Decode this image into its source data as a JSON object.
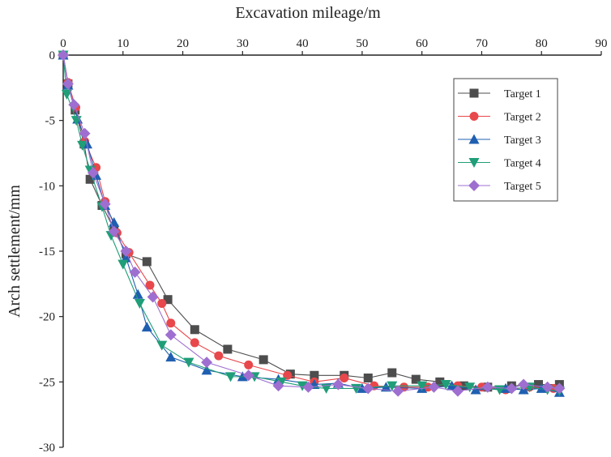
{
  "chart_data": {
    "type": "line",
    "title": "",
    "xlabel": "Excavation mileage/m",
    "ylabel": "Arch settlement/mm",
    "xlim": [
      0,
      90
    ],
    "ylim": [
      -30,
      0
    ],
    "x_ticks": [
      "0",
      "10",
      "20",
      "30",
      "40",
      "50",
      "60",
      "70",
      "80",
      "90"
    ],
    "y_ticks": [
      "0",
      "-5",
      "-10",
      "-15",
      "-20",
      "-25",
      "-30"
    ],
    "x_axis_position": "top",
    "grid": false,
    "legend_position": "top-right",
    "series": [
      {
        "name": "Target 1",
        "color": "#4d4d4d",
        "marker": "square",
        "points": [
          [
            0,
            0
          ],
          [
            0.8,
            -2.2
          ],
          [
            2,
            -4.2
          ],
          [
            3.5,
            -6.8
          ],
          [
            4.5,
            -9.5
          ],
          [
            6.5,
            -11.5
          ],
          [
            8.5,
            -13.3
          ],
          [
            10.5,
            -15.2
          ],
          [
            14,
            -15.8
          ],
          [
            17.5,
            -18.7
          ],
          [
            22,
            -21
          ],
          [
            27.5,
            -22.5
          ],
          [
            33.5,
            -23.3
          ],
          [
            38,
            -24.4
          ],
          [
            42,
            -24.5
          ],
          [
            47,
            -24.5
          ],
          [
            51,
            -24.7
          ],
          [
            55,
            -24.3
          ],
          [
            59,
            -24.8
          ],
          [
            63,
            -25
          ],
          [
            67,
            -25.3
          ],
          [
            71,
            -25.4
          ],
          [
            75,
            -25.3
          ],
          [
            79.5,
            -25.2
          ],
          [
            83,
            -25.2
          ]
        ]
      },
      {
        "name": "Target 2",
        "color": "#e8474b",
        "marker": "circle",
        "points": [
          [
            0,
            0
          ],
          [
            0.8,
            -2.1
          ],
          [
            2.1,
            -4
          ],
          [
            3.6,
            -6.6
          ],
          [
            5.5,
            -8.6
          ],
          [
            7,
            -11.2
          ],
          [
            9,
            -13.6
          ],
          [
            11,
            -15.1
          ],
          [
            14.5,
            -17.6
          ],
          [
            16.5,
            -19
          ],
          [
            18,
            -20.5
          ],
          [
            22,
            -22
          ],
          [
            26,
            -23
          ],
          [
            31,
            -23.7
          ],
          [
            37.5,
            -24.5
          ],
          [
            42,
            -25
          ],
          [
            47,
            -24.7
          ],
          [
            52,
            -25.3
          ],
          [
            57,
            -25.4
          ],
          [
            61,
            -25.4
          ],
          [
            66,
            -25.3
          ],
          [
            70,
            -25.4
          ],
          [
            74,
            -25.6
          ],
          [
            78,
            -25.4
          ],
          [
            82,
            -25.5
          ]
        ]
      },
      {
        "name": "Target 3",
        "color": "#1f5fb0",
        "marker": "triangle-up",
        "points": [
          [
            0,
            0
          ],
          [
            0.8,
            -2.3
          ],
          [
            2.4,
            -4.9
          ],
          [
            4,
            -6.8
          ],
          [
            5.5,
            -9.2
          ],
          [
            7,
            -11.5
          ],
          [
            8.5,
            -12.8
          ],
          [
            10.5,
            -15.5
          ],
          [
            12.5,
            -18.3
          ],
          [
            14,
            -20.8
          ],
          [
            18,
            -23.1
          ],
          [
            24,
            -24.1
          ],
          [
            30,
            -24.6
          ],
          [
            36,
            -24.8
          ],
          [
            42,
            -25.2
          ],
          [
            46,
            -25.1
          ],
          [
            50,
            -25.5
          ],
          [
            54,
            -25.4
          ],
          [
            60,
            -25.5
          ],
          [
            65,
            -25.3
          ],
          [
            69,
            -25.6
          ],
          [
            74,
            -25.5
          ],
          [
            77,
            -25.6
          ],
          [
            80,
            -25.5
          ],
          [
            83,
            -25.8
          ]
        ]
      },
      {
        "name": "Target 4",
        "color": "#1f9e78",
        "marker": "triangle-down",
        "points": [
          [
            0,
            0
          ],
          [
            0.6,
            -3
          ],
          [
            2.2,
            -5
          ],
          [
            3.2,
            -6.9
          ],
          [
            4.5,
            -8.8
          ],
          [
            6.5,
            -11.6
          ],
          [
            8,
            -13.8
          ],
          [
            10,
            -16
          ],
          [
            12.8,
            -19
          ],
          [
            16.5,
            -22.2
          ],
          [
            21,
            -23.5
          ],
          [
            28,
            -24.6
          ],
          [
            32,
            -24.6
          ],
          [
            36.5,
            -25
          ],
          [
            40,
            -25.3
          ],
          [
            44,
            -25.5
          ],
          [
            49,
            -25.5
          ],
          [
            55,
            -25.3
          ],
          [
            60,
            -25.3
          ],
          [
            64,
            -25.2
          ],
          [
            68,
            -25.4
          ],
          [
            73,
            -25.6
          ],
          [
            78,
            -25.4
          ],
          [
            81,
            -25.6
          ],
          [
            83,
            -25.7
          ]
        ]
      },
      {
        "name": "Target 5",
        "color": "#9e6fd0",
        "marker": "diamond",
        "points": [
          [
            0,
            0
          ],
          [
            0.8,
            -2.2
          ],
          [
            1.8,
            -3.8
          ],
          [
            3.6,
            -6
          ],
          [
            5,
            -9
          ],
          [
            7,
            -11.4
          ],
          [
            8.5,
            -13.5
          ],
          [
            10.5,
            -15
          ],
          [
            12,
            -16.6
          ],
          [
            15,
            -18.5
          ],
          [
            18,
            -21.4
          ],
          [
            24,
            -23.5
          ],
          [
            31,
            -24.5
          ],
          [
            36,
            -25.3
          ],
          [
            41,
            -25.4
          ],
          [
            46,
            -25.2
          ],
          [
            51,
            -25.5
          ],
          [
            56,
            -25.7
          ],
          [
            62,
            -25.4
          ],
          [
            66,
            -25.7
          ],
          [
            71,
            -25.4
          ],
          [
            75,
            -25.5
          ],
          [
            77,
            -25.2
          ],
          [
            81,
            -25.4
          ],
          [
            83,
            -25.5
          ]
        ]
      }
    ]
  }
}
